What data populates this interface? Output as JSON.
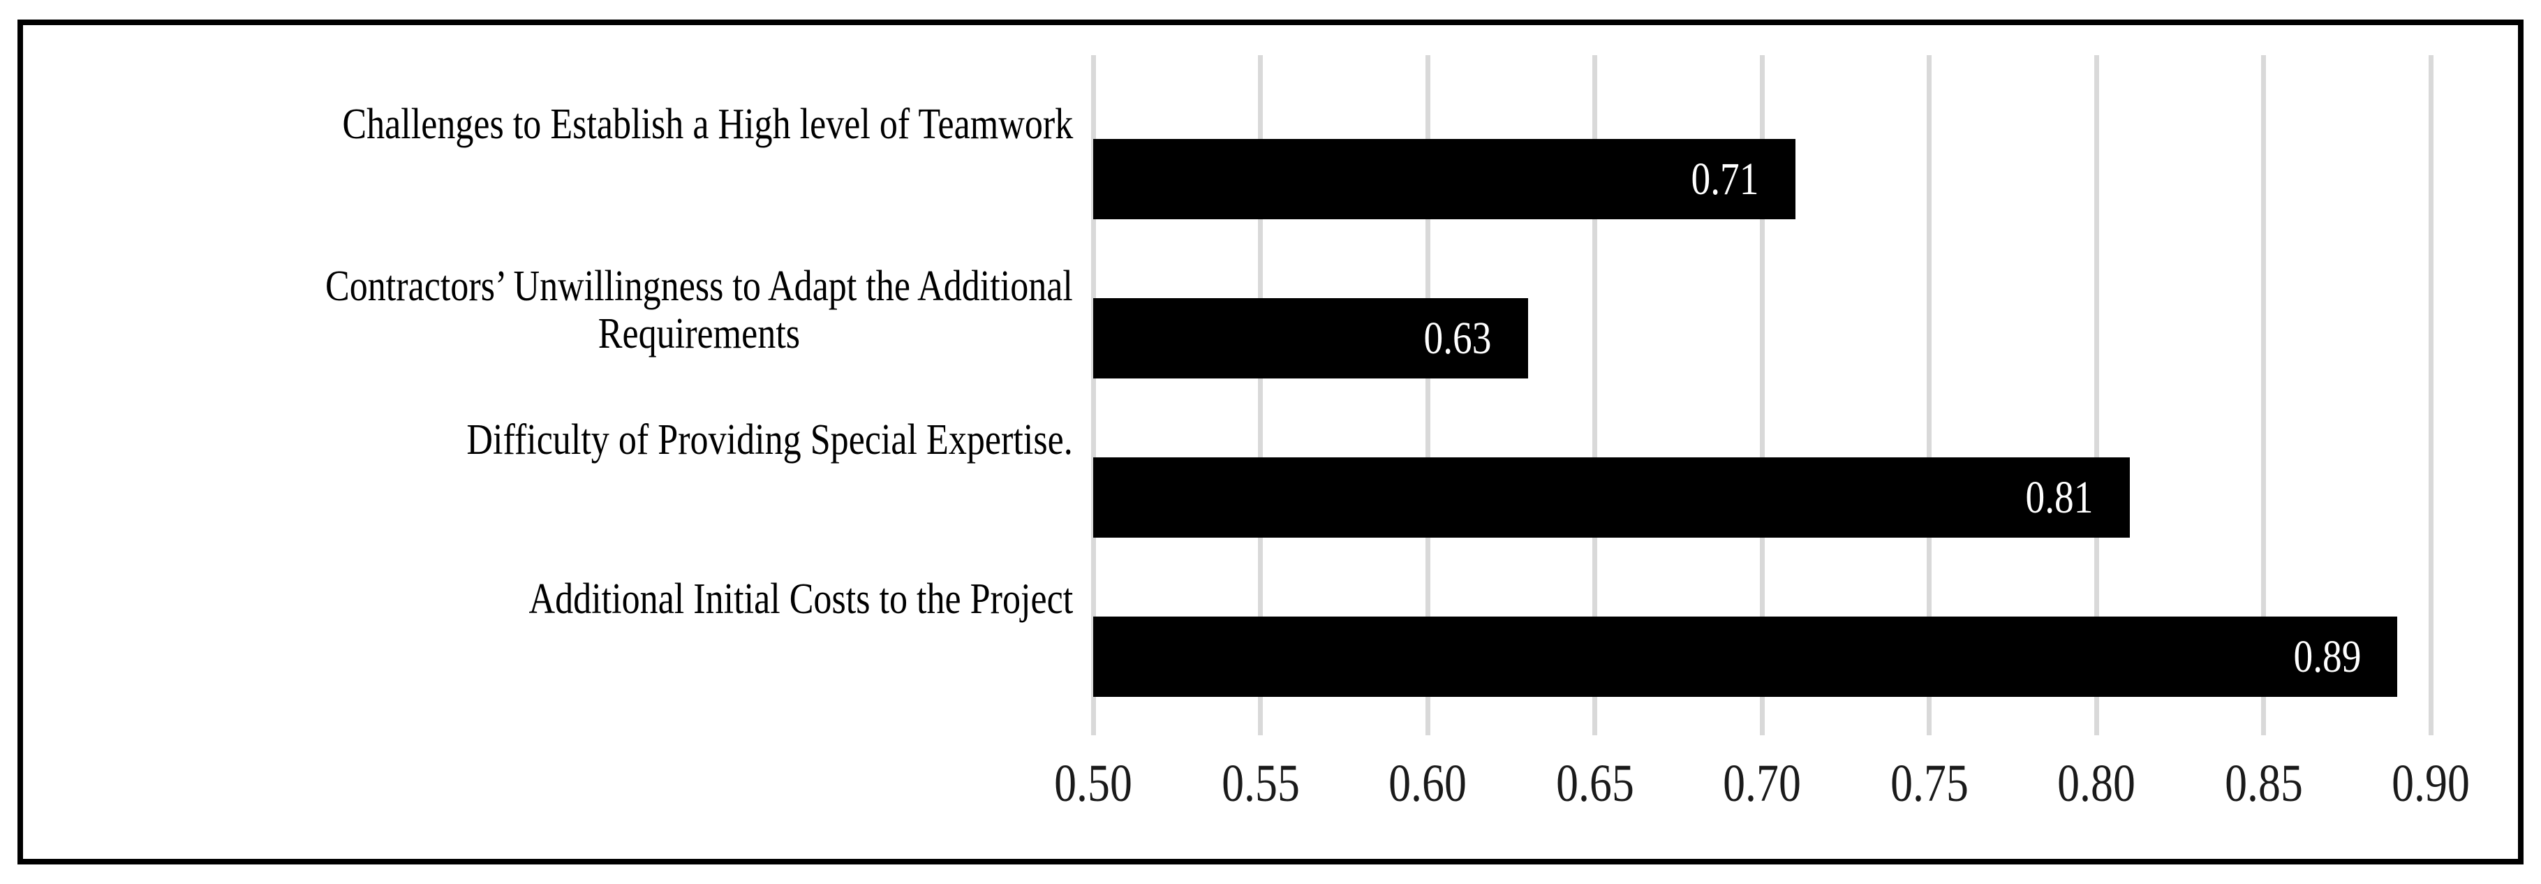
{
  "chart_data": {
    "type": "bar",
    "orientation": "horizontal",
    "title": "",
    "xlabel": "",
    "ylabel": "",
    "categories": [
      "Challenges to Establish a High level of Teamwork",
      "Contractors’ Unwillingness to Adapt the Additional\nRequirements",
      "Difficulty of Providing Special Expertise.",
      "Additional Initial Costs to the Project"
    ],
    "values": [
      0.71,
      0.63,
      0.81,
      0.89
    ],
    "value_labels": [
      "0.71",
      "0.63",
      "0.81",
      "0.89"
    ],
    "x_ticks": [
      0.5,
      0.55,
      0.6,
      0.65,
      0.7,
      0.75,
      0.8,
      0.85,
      0.9
    ],
    "x_tick_labels": [
      "0.50",
      "0.55",
      "0.60",
      "0.65",
      "0.70",
      "0.75",
      "0.80",
      "0.85",
      "0.90"
    ],
    "xlim": [
      0.5,
      0.9
    ],
    "x_tick_step": 0.05,
    "grid": "vertical-gridlines-on",
    "legend": "none",
    "data_labels_position": "inside-end",
    "colors": {
      "bar": "#000000",
      "value_label_text": "#ffffff",
      "gridline": "#d9d9d9",
      "axis_text": "#1a1a1a",
      "category_text": "#000000",
      "frame_border": "#000000",
      "background": "#ffffff"
    }
  }
}
